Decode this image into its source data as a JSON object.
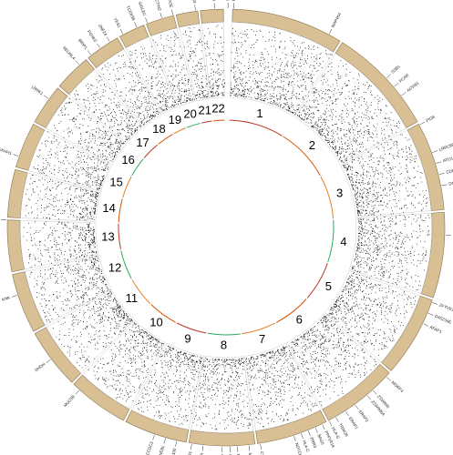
{
  "chromosomes": [
    "1",
    "2",
    "3",
    "4",
    "5",
    "6",
    "7",
    "8",
    "9",
    "10",
    "11",
    "12",
    "13",
    "14",
    "15",
    "16",
    "17",
    "18",
    "19",
    "20",
    "21",
    "22"
  ],
  "genes": [
    "MAP4K4",
    "SSB1",
    "FCAR",
    "ACSM1",
    "PIGK",
    "LRRC8D",
    "ATG16L1",
    "CD8B",
    "DNAH7",
    "NAGD1",
    "ZFYVE28",
    "D4S234E",
    "AFAP1",
    "MORF4",
    "ZSWIM6",
    "ZSWIM6A",
    "ERAP2",
    "ERAP1",
    "TRIM26",
    "HLA-G",
    "PPP1R18",
    "BAG6",
    "PRR3",
    "HLA-C",
    "NOTCH4",
    "CYP3A7",
    "MAGI2",
    "PTPRN2",
    "GRB10",
    "MGAT4A",
    "GPR",
    "OR1",
    "LOC100",
    "NEBL",
    "CCDC3",
    "MUC5B",
    "DHDH",
    "KNK",
    "RB1",
    "PLEKHH1",
    "LRRK1",
    "NEURL4",
    "BRIP1",
    "FOXK2",
    "ZNF24",
    "YES1",
    "TCEB3B",
    "SIGLEC",
    "NECTIN2",
    "APOE",
    "C21orf33",
    "GSTT1",
    "SMC1B",
    "PRKAR1B"
  ]
}
